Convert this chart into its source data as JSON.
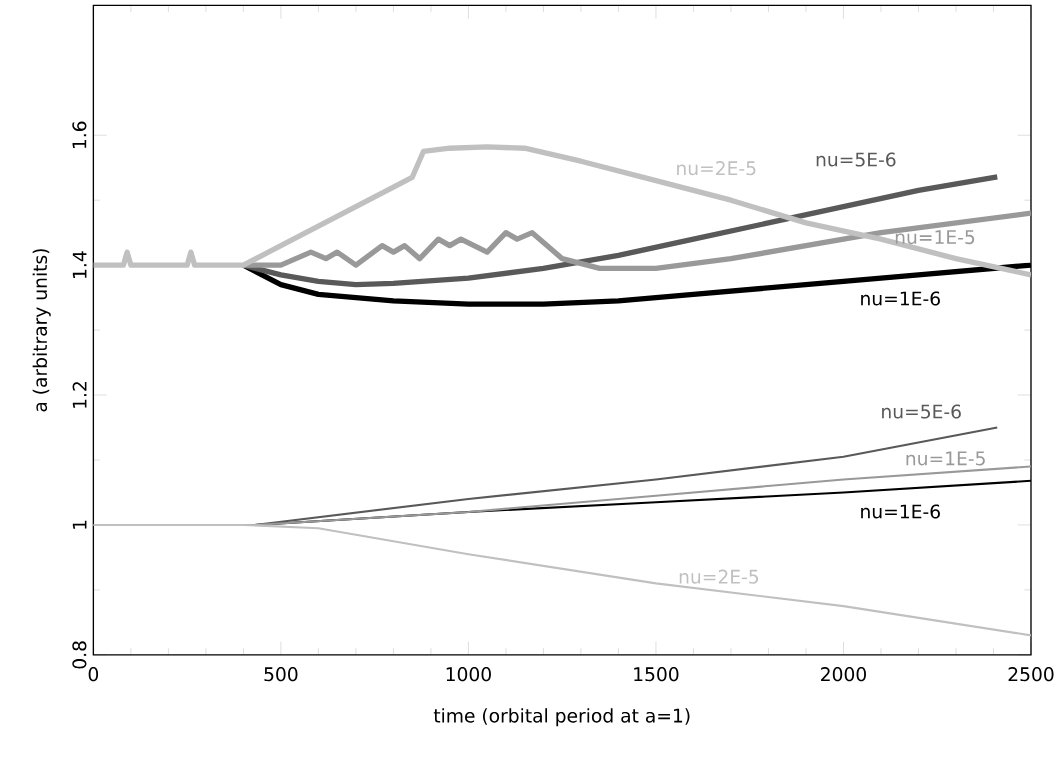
{
  "chart_data": {
    "type": "line",
    "xlabel": "time (orbital period at a=1)",
    "ylabel": "a (arbitrary units)",
    "xlim": [
      0,
      2500
    ],
    "ylim": [
      0.8,
      1.8
    ],
    "xticks": [
      0,
      500,
      1000,
      1500,
      2000,
      2500
    ],
    "yticks": [
      0.8,
      1,
      1.2,
      1.4,
      1.6
    ],
    "grid": false,
    "marker": "none",
    "line_style": "solid",
    "series": [
      {
        "name": "nu=2E-5",
        "color": "#c0c0c0",
        "x": [
          0,
          80,
          90,
          100,
          250,
          260,
          270,
          400,
          500,
          600,
          700,
          800,
          850,
          880,
          950,
          1050,
          1150,
          1300,
          1500,
          1700,
          1900,
          2100,
          2300,
          2500
        ],
        "values": [
          1.4,
          1.4,
          1.42,
          1.4,
          1.4,
          1.42,
          1.4,
          1.4,
          1.43,
          1.46,
          1.49,
          1.52,
          1.535,
          1.575,
          1.58,
          1.582,
          1.58,
          1.56,
          1.53,
          1.5,
          1.465,
          1.44,
          1.41,
          1.385
        ]
      },
      {
        "name": "nu=1E-5",
        "color": "#999999",
        "x": [
          400,
          500,
          580,
          620,
          650,
          700,
          770,
          800,
          830,
          870,
          920,
          950,
          980,
          1050,
          1100,
          1130,
          1170,
          1250,
          1350,
          1500,
          1700,
          1900,
          2100,
          2300,
          2500
        ],
        "values": [
          1.4,
          1.4,
          1.42,
          1.41,
          1.42,
          1.4,
          1.43,
          1.42,
          1.43,
          1.41,
          1.44,
          1.43,
          1.44,
          1.42,
          1.45,
          1.44,
          1.45,
          1.41,
          1.395,
          1.395,
          1.41,
          1.43,
          1.45,
          1.465,
          1.48
        ]
      },
      {
        "name": "nu=5E-6",
        "color": "#595959",
        "x": [
          400,
          500,
          600,
          700,
          800,
          1000,
          1200,
          1400,
          1600,
          1800,
          2000,
          2200,
          2410
        ],
        "values": [
          1.4,
          1.385,
          1.375,
          1.37,
          1.372,
          1.38,
          1.395,
          1.415,
          1.44,
          1.465,
          1.49,
          1.515,
          1.536
        ]
      },
      {
        "name": "nu=1E-6",
        "color": "#000000",
        "x": [
          400,
          500,
          600,
          800,
          1000,
          1200,
          1400,
          1600,
          1800,
          2000,
          2200,
          2500
        ],
        "values": [
          1.4,
          1.37,
          1.355,
          1.345,
          1.34,
          1.34,
          1.345,
          1.355,
          1.365,
          1.375,
          1.385,
          1.4
        ]
      },
      {
        "name": "nu=2E-5",
        "color": "#c0c0c0",
        "x": [
          0,
          400,
          600,
          850,
          1000,
          1500,
          2000,
          2500
        ],
        "values": [
          1.0,
          1.0,
          0.995,
          0.97,
          0.955,
          0.91,
          0.875,
          0.83
        ]
      },
      {
        "name": "nu=1E-5",
        "color": "#999999",
        "x": [
          0,
          430,
          1000,
          1500,
          2000,
          2500
        ],
        "values": [
          1.0,
          1.0,
          1.02,
          1.045,
          1.07,
          1.09
        ]
      },
      {
        "name": "nu=5E-6",
        "color": "#595959",
        "x": [
          0,
          430,
          1000,
          1500,
          2000,
          2410
        ],
        "values": [
          1.0,
          1.0,
          1.04,
          1.07,
          1.105,
          1.15
        ]
      },
      {
        "name": "nu=1E-6",
        "color": "#000000",
        "x": [
          0,
          430,
          1000,
          1500,
          2000,
          2500
        ],
        "values": [
          1.0,
          1.0,
          1.02,
          1.035,
          1.05,
          1.068
        ]
      }
    ]
  }
}
